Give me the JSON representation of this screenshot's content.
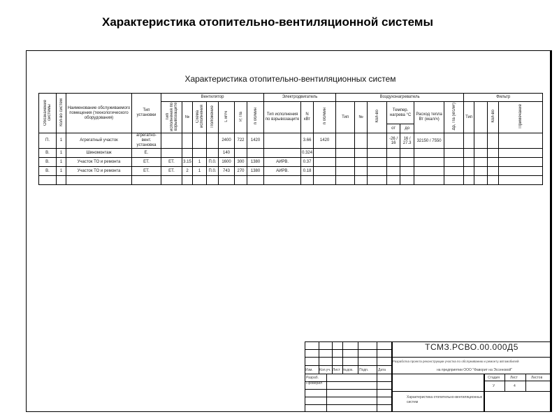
{
  "slide_title": "Характеристика отопительно-вентиляционной системы",
  "sheet_title": "Характеристика отопительно-вентиляционных систем",
  "table": {
    "groups": {
      "fan": "Вентилятор",
      "motor": "Электродвигатель",
      "heater": "Воздухонагреватель",
      "filter": "Фильтр"
    },
    "headers": {
      "designation": "Обозначение системы",
      "count": "Кол-во систем",
      "name": "Наименование обслуживаемого помещения (технологического оборудования)",
      "unit_type": "Тип установки",
      "fan_type": "Тип исполнения по взрывозащите",
      "fan_no": "№",
      "fan_scheme": "Схема исполнения",
      "fan_position": "Положение",
      "fan_L": "L м³/ч",
      "fan_P": "Р, Па",
      "fan_n": "n об/мин",
      "motor_type": "Тип исполнения по взрывозащите",
      "motor_N": "N кВт",
      "motor_n": "n об/мин",
      "heater_type": "Тип",
      "heater_no": "№",
      "heater_qty": "Кол-во",
      "heater_temp": "Темпер. нагрева °С",
      "heater_from": "от",
      "heater_to": "до",
      "heater_flow": "Расход тепла Вт (ккал/ч)",
      "heater_dp": "Δр, Па (кгс/м²)",
      "filter_type": "Тип",
      "filter_qty": "Кол-во",
      "note": "Примечание"
    },
    "rows": [
      {
        "designation": "П.",
        "count": "1",
        "name": "Агрегатный участок",
        "unit_type": "агрегатно-вент. установка",
        "fan_type": "",
        "fan_no": "",
        "fan_scheme": "",
        "fan_position": "",
        "fan_L": "2400",
        "fan_P": "722",
        "fan_n": "1420",
        "motor_type": "",
        "motor_N": "3.66",
        "motor_n": "1420",
        "t_from": "-26 / 16",
        "t_to": "16 / 27.3",
        "flow": "32150 / 7550"
      },
      {
        "designation": "В.",
        "count": "1",
        "name": "Шиномонтаж",
        "unit_type": "Е.",
        "fan_type": "",
        "fan_no": "",
        "fan_scheme": "",
        "fan_position": "",
        "fan_L": "140",
        "fan_P": "",
        "fan_n": "",
        "motor_type": "",
        "motor_N": "0.324",
        "motor_n": "",
        "t_from": "",
        "t_to": "",
        "flow": ""
      },
      {
        "designation": "В.",
        "count": "1",
        "name": "Участок ТО и ремонта",
        "unit_type": "ЕТ.",
        "fan_type": "ЕТ.",
        "fan_no": "3.15",
        "fan_scheme": "1",
        "fan_position": "П.0.",
        "fan_L": "1600",
        "fan_P": "300",
        "fan_n": "1380",
        "motor_type": "АИРВ.",
        "motor_N": "0.37",
        "motor_n": "",
        "t_from": "",
        "t_to": "",
        "flow": ""
      },
      {
        "designation": "В.",
        "count": "1",
        "name": "Участок ТО и ремонта",
        "unit_type": "ЕТ.",
        "fan_type": "ЕТ.",
        "fan_no": "2",
        "fan_scheme": "1",
        "fan_position": "П.0.",
        "fan_L": "743",
        "fan_P": "270",
        "fan_n": "1380",
        "motor_type": "АИРВ.",
        "motor_N": "0.18",
        "motor_n": "",
        "t_from": "",
        "t_to": "",
        "flow": ""
      }
    ]
  },
  "stamp": {
    "code": "ТСМЗ.РСВО.00.000Д5",
    "subject_line1": "Разработка проекта реконструкции участка по обслуживанию и ремонту автомобилей",
    "subject_line2": "на предприятии ООО \"Фаворит на Эссеновой\"",
    "cols": [
      "Изм.",
      "Кол.уч.",
      "Лист",
      "№док.",
      "Подп.",
      "Дата"
    ],
    "developed": "Разраб.",
    "checked": "Проверил",
    "stage_label": "Стадия",
    "sheet_label": "Лист",
    "sheets_label": "Листов",
    "stage": "У",
    "sheet": "4",
    "drawing_title": "Характеристика отопительно-вентиляционных систем"
  }
}
